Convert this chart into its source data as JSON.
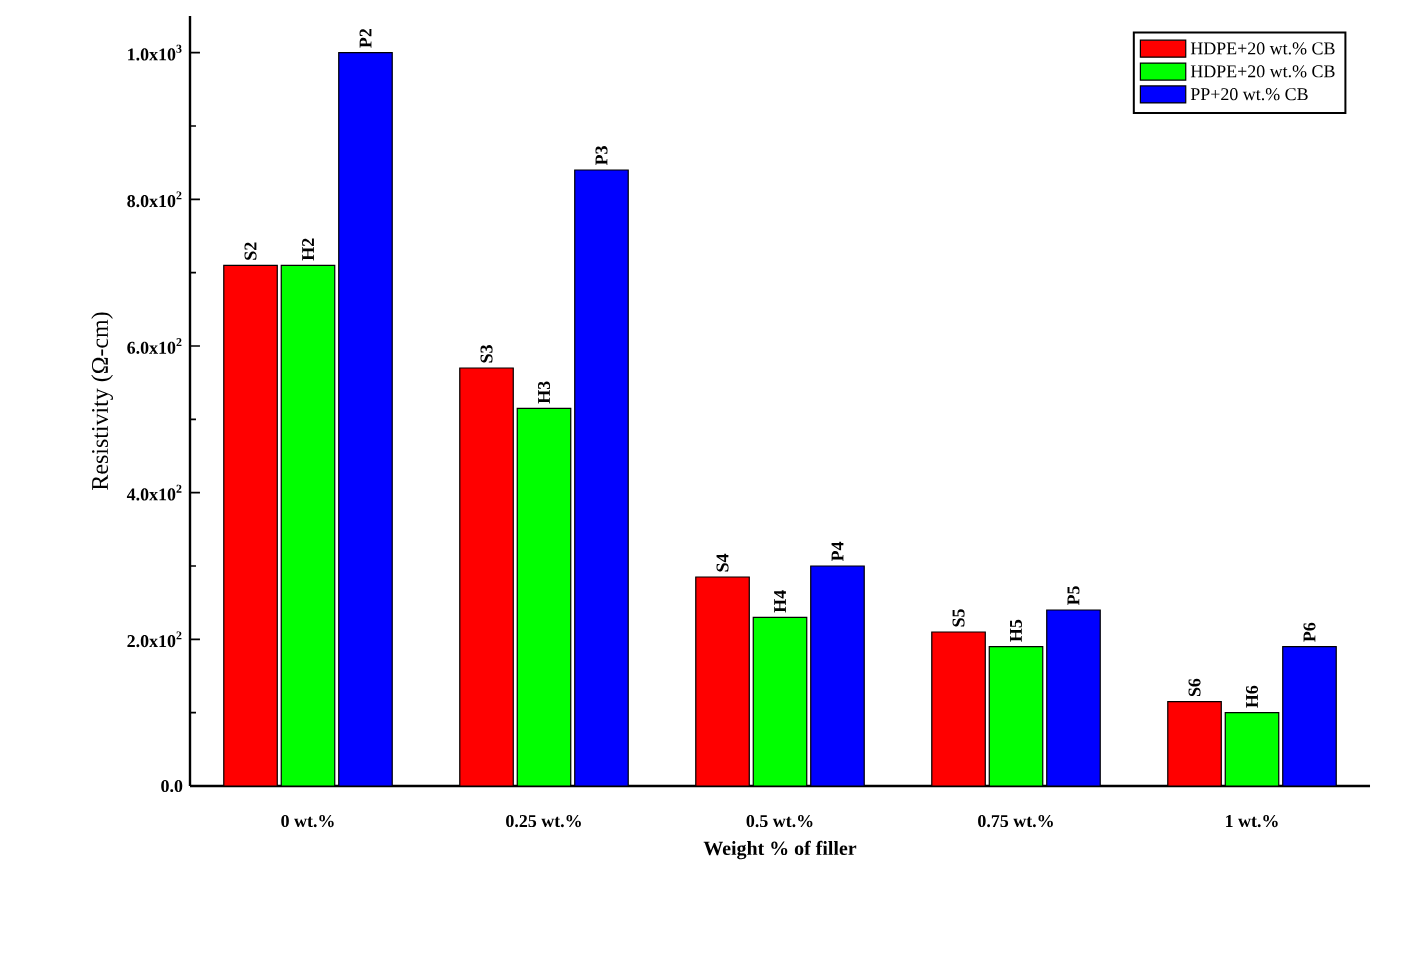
{
  "chart_data": {
    "type": "bar",
    "xlabel": "Weight % of filler",
    "ylabel": "Resistivity (Ω-cm)",
    "categories": [
      "0 wt.%",
      "0.25 wt.%",
      "0.5 wt.%",
      "0.75 wt.%",
      "1 wt.%"
    ],
    "series": [
      {
        "name": "HDPE+20 wt.% CB",
        "color": "#ff0000",
        "values": [
          710,
          570,
          285,
          210,
          115
        ],
        "value_labels": [
          "S2",
          "S3",
          "S4",
          "S5",
          "S6"
        ]
      },
      {
        "name": "HDPE+20 wt.% CB",
        "color": "#00ff00",
        "values": [
          710,
          515,
          230,
          190,
          100
        ],
        "value_labels": [
          "H2",
          "H3",
          "H4",
          "H5",
          "H6"
        ]
      },
      {
        "name": "PP+20 wt.% CB",
        "color": "#0000ff",
        "values": [
          1000,
          840,
          300,
          240,
          190
        ],
        "value_labels": [
          "P2",
          "P3",
          "P4",
          "P5",
          "P6"
        ]
      }
    ],
    "ylim": [
      0,
      1050
    ],
    "yticks": [
      {
        "value": 0,
        "label": "0.0"
      },
      {
        "value": 200,
        "label": "2.0x10$^{2}$"
      },
      {
        "value": 400,
        "label": "4.0x10$^{2}$"
      },
      {
        "value": 600,
        "label": "6.0x10$^{2}$"
      },
      {
        "value": 800,
        "label": "8.0x10$^{2}$"
      },
      {
        "value": 1000,
        "label": "1.0x10$^{3}$"
      }
    ],
    "legend": "top right",
    "grid": false
  }
}
